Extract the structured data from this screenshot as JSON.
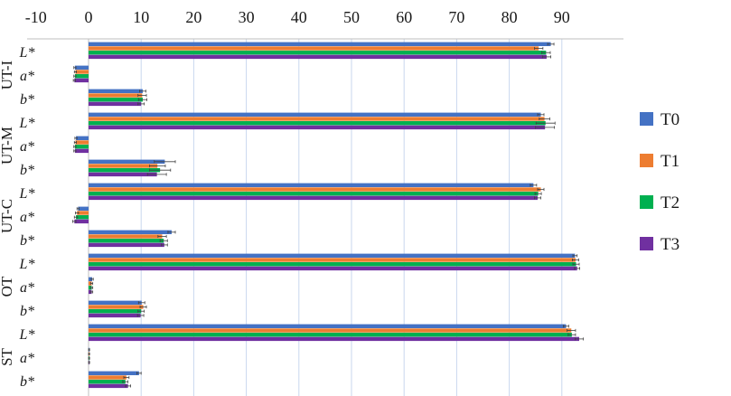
{
  "chart_data": {
    "type": "bar",
    "orientation": "horizontal",
    "title": "",
    "xlabel": "",
    "ylabel": "",
    "xlim": [
      -10,
      95
    ],
    "xticks": [
      -10,
      0,
      10,
      20,
      30,
      40,
      50,
      60,
      70,
      80,
      90
    ],
    "x_tick_labels": [
      "-10",
      "0",
      "10",
      "20",
      "30",
      "40",
      "50",
      "60",
      "70",
      "80",
      "90"
    ],
    "grid": "vertical gridlines on",
    "legend_position": "right",
    "groups": [
      {
        "name": "UT-I",
        "variables": [
          "L*",
          "a*",
          "b*"
        ]
      },
      {
        "name": "UT-M",
        "variables": [
          "L*",
          "a*",
          "b*"
        ]
      },
      {
        "name": "UT-C",
        "variables": [
          "L*",
          "a*",
          "b*"
        ]
      },
      {
        "name": "OT",
        "variables": [
          "L*",
          "a*",
          "b*"
        ]
      },
      {
        "name": "ST",
        "variables": [
          "L*",
          "a*",
          "b*"
        ]
      }
    ],
    "categories": [
      "UT-I L*",
      "UT-I a*",
      "UT-I b*",
      "UT-M L*",
      "UT-M a*",
      "UT-M b*",
      "UT-C L*",
      "UT-C a*",
      "UT-C b*",
      "OT L*",
      "OT a*",
      "OT b*",
      "ST L*",
      "ST a*",
      "ST b*"
    ],
    "series": [
      {
        "name": "T0",
        "color": "#4472C4",
        "values": [
          87.9,
          -2.6,
          10.3,
          86.0,
          -2.4,
          14.5,
          84.6,
          -2.0,
          15.8,
          92.5,
          0.7,
          10.1,
          90.8,
          0.1,
          9.6
        ],
        "errors": [
          0.6,
          0.2,
          0.6,
          0.6,
          0.2,
          2.0,
          0.6,
          0.2,
          0.7,
          0.4,
          0.2,
          0.6,
          0.5,
          0.1,
          0.4
        ]
      },
      {
        "name": "T1",
        "color": "#ED7D31",
        "values": [
          85.6,
          -2.5,
          10.2,
          86.7,
          -2.5,
          13.1,
          86.0,
          -2.2,
          14.0,
          92.6,
          0.6,
          10.4,
          91.8,
          0.1,
          7.2
        ],
        "errors": [
          0.8,
          0.2,
          0.8,
          1.0,
          0.2,
          1.5,
          0.6,
          0.3,
          0.8,
          0.6,
          0.2,
          0.6,
          0.8,
          0.1,
          0.5
        ]
      },
      {
        "name": "T2",
        "color": "#00B050",
        "values": [
          87.0,
          -2.6,
          10.3,
          86.9,
          -2.6,
          13.6,
          85.5,
          -2.4,
          14.3,
          92.7,
          0.6,
          10.0,
          91.9,
          0.1,
          7.0
        ],
        "errors": [
          0.8,
          0.2,
          0.8,
          1.8,
          0.2,
          2.0,
          0.6,
          0.3,
          0.7,
          0.6,
          0.2,
          0.6,
          0.7,
          0.1,
          0.5
        ]
      },
      {
        "name": "T3",
        "color": "#7030A0",
        "values": [
          87.1,
          -2.7,
          10.0,
          86.8,
          -2.6,
          13.0,
          85.4,
          -2.7,
          14.4,
          92.9,
          0.6,
          9.9,
          93.3,
          0.1,
          7.5
        ],
        "errors": [
          0.8,
          0.2,
          0.6,
          1.8,
          0.2,
          1.8,
          0.6,
          0.3,
          0.6,
          0.5,
          0.2,
          0.6,
          0.8,
          0.1,
          0.5
        ]
      }
    ]
  }
}
